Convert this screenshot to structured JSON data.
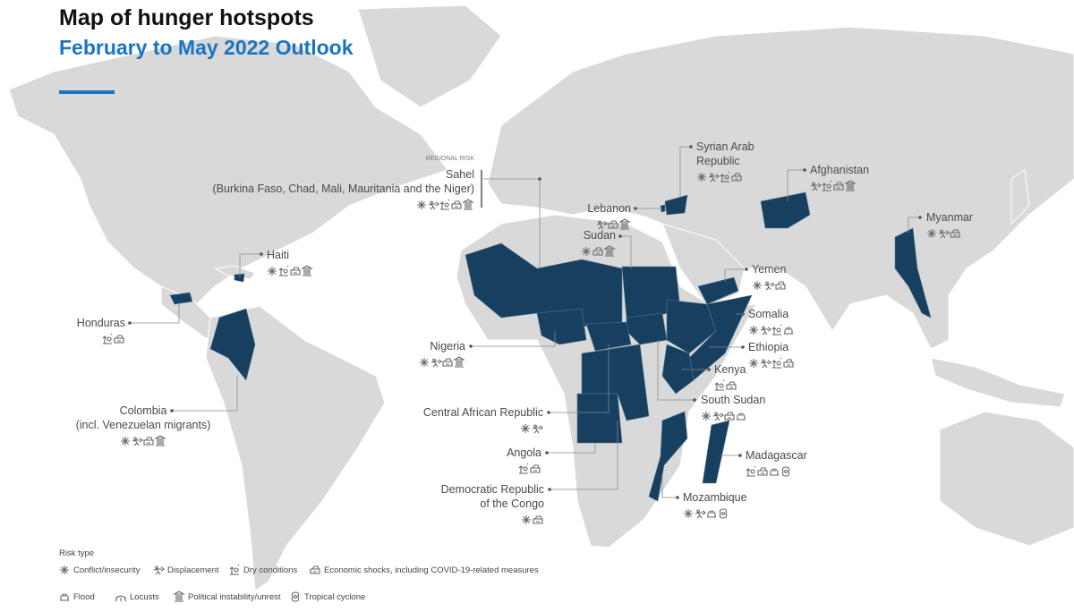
{
  "header": {
    "title": "Map of hunger hotspots",
    "subtitle": "February to May 2022 Outlook"
  },
  "hotspots": [
    {
      "lines": [
        "Haiti"
      ]
    },
    {
      "lines": [
        "Honduras"
      ]
    },
    {
      "lines": [
        "Colombia",
        "(incl. Venezuelan migrants)"
      ]
    },
    {
      "note": "REGIONAL RISK",
      "lines": [
        "Sahel",
        "(Burkina Faso, Chad, Mali, Mauritania and the Niger)"
      ]
    },
    {
      "lines": [
        "Lebanon"
      ]
    },
    {
      "lines": [
        "Sudan"
      ]
    },
    {
      "lines": [
        "Syrian Arab",
        "Republic"
      ]
    },
    {
      "lines": [
        "Afghanistan"
      ]
    },
    {
      "lines": [
        "Myanmar"
      ]
    },
    {
      "lines": [
        "Yemen"
      ]
    },
    {
      "lines": [
        "Somalia"
      ]
    },
    {
      "lines": [
        "Ethiopia"
      ]
    },
    {
      "lines": [
        "Kenya"
      ]
    },
    {
      "lines": [
        "South Sudan"
      ]
    },
    {
      "lines": [
        "Nigeria"
      ]
    },
    {
      "lines": [
        "Central African Republic"
      ]
    },
    {
      "lines": [
        "Angola"
      ]
    },
    {
      "lines": [
        "Democratic Republic",
        "of the Congo"
      ]
    },
    {
      "lines": [
        "Madagascar"
      ]
    },
    {
      "lines": [
        "Mozambique"
      ]
    }
  ],
  "legend": {
    "title": "Risk type",
    "items": [
      "Conflict/insecurity",
      "Displacement",
      "Dry conditions",
      "Economic shocks, including COVID-19-related measures",
      "Flood",
      "Locusts",
      "Political instability/unrest",
      "Tropical cyclone"
    ]
  }
}
